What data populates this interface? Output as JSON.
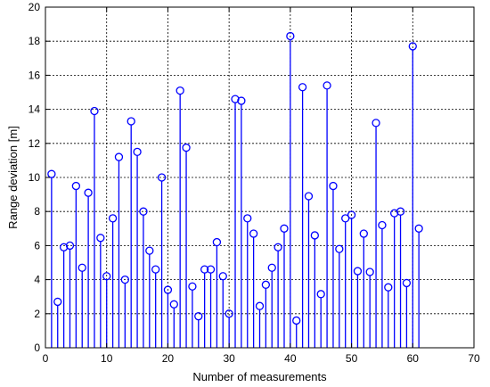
{
  "chart_data": {
    "type": "stem",
    "title": "",
    "xlabel": "Number of measurements",
    "ylabel": "Range deviation [m]",
    "xlim": [
      0,
      70
    ],
    "ylim": [
      0,
      20
    ],
    "xticks": [
      0,
      10,
      20,
      30,
      40,
      50,
      60,
      70
    ],
    "yticks": [
      0,
      2,
      4,
      6,
      8,
      10,
      12,
      14,
      16,
      18,
      20
    ],
    "grid": true,
    "color": "#0000ff",
    "x": [
      1,
      2,
      3,
      4,
      5,
      6,
      7,
      8,
      9,
      10,
      11,
      12,
      13,
      14,
      15,
      16,
      17,
      18,
      19,
      20,
      21,
      22,
      23,
      24,
      25,
      26,
      27,
      28,
      29,
      30,
      31,
      32,
      33,
      34,
      35,
      36,
      37,
      38,
      39,
      40,
      41,
      42,
      43,
      44,
      45,
      46,
      47,
      48,
      49,
      50,
      51,
      52,
      53,
      54,
      55,
      56,
      57,
      58,
      59,
      60,
      61
    ],
    "y": [
      10.2,
      2.7,
      5.9,
      6.0,
      9.5,
      4.7,
      9.1,
      13.9,
      6.45,
      4.2,
      7.6,
      11.2,
      4.0,
      13.3,
      11.5,
      8.0,
      5.7,
      4.6,
      10.0,
      3.4,
      2.55,
      15.1,
      11.75,
      3.6,
      1.85,
      4.6,
      4.6,
      6.2,
      4.2,
      2.0,
      14.6,
      14.5,
      7.6,
      6.7,
      2.45,
      3.7,
      4.7,
      5.9,
      7.0,
      18.3,
      1.6,
      15.3,
      8.9,
      6.6,
      3.15,
      15.4,
      9.5,
      5.8,
      7.6,
      7.8,
      4.5,
      6.7,
      4.45,
      13.2,
      7.2,
      3.55,
      7.9,
      8.0,
      3.8,
      17.7,
      7.0
    ]
  }
}
